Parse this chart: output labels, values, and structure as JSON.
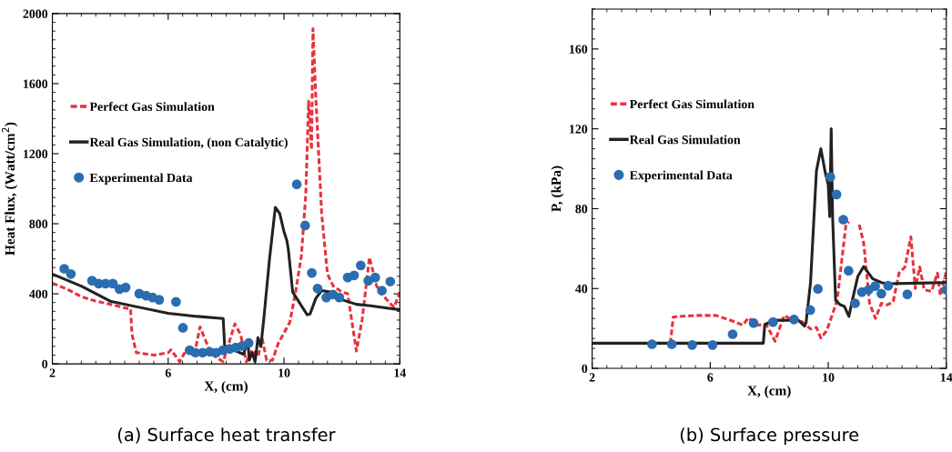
{
  "chart_data": [
    {
      "type": "line",
      "xlabel": "X, (cm)",
      "ylabel": "Heat Flux, (Watt/cm$^{2}$)",
      "xlim": [
        2,
        14
      ],
      "ylim": [
        0,
        2000
      ],
      "xticks": [
        2,
        6,
        10,
        14
      ],
      "yticks": [
        0,
        400,
        800,
        1200,
        1600,
        2000
      ],
      "legend": "top left",
      "grid": false,
      "annotations": [
        "(a) Surface heat transfer"
      ],
      "series": [
        {
          "name": "Perfect Gas Simulation",
          "line_style": "dashed",
          "color": "#e8323c",
          "x": [
            2,
            2.5,
            3,
            3.5,
            4,
            4.5,
            4.7,
            4.75,
            4.9,
            5.5,
            6,
            6.1,
            6.4,
            6.6,
            6.9,
            7.1,
            7.3,
            7.5,
            7.9,
            8.3,
            8.5,
            8.7,
            8.9,
            9.1,
            9.25,
            9.4,
            9.6,
            9.8,
            10.2,
            10.4,
            10.6,
            10.75,
            10.85,
            10.95,
            11.0,
            11.1,
            11.3,
            11.5,
            11.7,
            12,
            12.2,
            12.5,
            12.7,
            12.95,
            13.2,
            13.5,
            13.8,
            14
          ],
          "values": [
            461,
            427,
            384,
            358,
            340,
            320,
            314,
            168,
            64,
            50,
            64,
            80,
            12,
            73,
            50,
            211,
            130,
            55,
            12,
            228,
            168,
            12,
            80,
            40,
            142,
            20,
            20,
            116,
            237,
            410,
            617,
            963,
            1499,
            1222,
            1914,
            1516,
            859,
            513,
            444,
            410,
            401,
            73,
            254,
            608,
            444,
            375,
            323,
            410
          ]
        },
        {
          "name": "Real Gas Simulation, (non Catalytic)",
          "line_style": "solid",
          "color": "#222222",
          "x": [
            2,
            3,
            4,
            5,
            6,
            7,
            7.9,
            7.95,
            8.0,
            8.6,
            8.75,
            8.8,
            8.9,
            9.0,
            9.1,
            9.2,
            9.3,
            9.5,
            9.7,
            9.85,
            10.0,
            10.1,
            10.15,
            10.3,
            10.5,
            10.8,
            10.9,
            11.1,
            11.3,
            11.6,
            12,
            12.5,
            13,
            13.5,
            14
          ],
          "values": [
            513,
            444,
            358,
            323,
            289,
            271,
            259,
            99,
            99,
            55,
            133,
            21,
            64,
            12,
            150,
            99,
            254,
            600,
            894,
            859,
            755,
            703,
            652,
            410,
            358,
            280,
            285,
            375,
            418,
            410,
            366,
            340,
            332,
            320,
            309
          ]
        },
        {
          "name": "Experimental Data",
          "type": "scatter",
          "marker": "circle",
          "color": "#2a6db0",
          "x": [
            2.41,
            2.64,
            3.37,
            3.6,
            3.84,
            4.09,
            4.32,
            4.53,
            5.0,
            5.24,
            5.46,
            5.69,
            6.27,
            6.51,
            6.74,
            6.94,
            7.19,
            7.43,
            7.66,
            7.89,
            8.12,
            8.33,
            8.55,
            8.78,
            10.44,
            10.73,
            10.96,
            11.16,
            11.46,
            11.69,
            11.91,
            12.2,
            12.42,
            12.65,
            12.91,
            13.15,
            13.38,
            13.67
          ],
          "values": [
            543,
            513,
            475,
            458,
            458,
            458,
            427,
            436,
            401,
            389,
            379,
            366,
            354,
            206,
            78,
            64,
            64,
            69,
            64,
            78,
            85,
            93,
            102,
            119,
            1025,
            790,
            519,
            430,
            379,
            396,
            379,
            493,
            505,
            562,
            475,
            493,
            418,
            470
          ]
        }
      ]
    },
    {
      "type": "line",
      "xlabel": "X, (cm)",
      "ylabel": "P, (kPa)",
      "xlim": [
        2,
        14
      ],
      "ylim": [
        0,
        180
      ],
      "xticks": [
        2,
        6,
        10,
        14
      ],
      "yticks": [
        0,
        40,
        80,
        120,
        160
      ],
      "legend": "top left",
      "grid": false,
      "annotations": [
        "(b) Surface pressure"
      ],
      "series": [
        {
          "name": "Perfect Gas Simulation",
          "line_style": "dashed",
          "color": "#e8323c",
          "x": [
            4.65,
            4.75,
            5.5,
            6.2,
            6.8,
            7.1,
            7.3,
            7.6,
            7.9,
            8.2,
            8.5,
            8.8,
            9.1,
            9.4,
            9.6,
            9.75,
            9.95,
            10.3,
            10.6,
            10.7,
            10.9,
            11.0,
            11.05,
            11.2,
            11.4,
            11.6,
            11.8,
            12.0,
            12.2,
            12.4,
            12.6,
            12.8,
            12.95,
            13.1,
            13.25,
            13.5,
            13.7,
            13.8,
            14
          ],
          "values": [
            12.5,
            25.8,
            26.5,
            26.5,
            23.5,
            21.7,
            25.3,
            21.7,
            22,
            13.6,
            26.5,
            24.2,
            23.5,
            19.7,
            20.5,
            15.2,
            18.9,
            34,
            72,
            73.5,
            null,
            null,
            72,
            63,
            32.6,
            25,
            32.6,
            31.8,
            33.3,
            47.7,
            50.8,
            65.9,
            40,
            50.8,
            39.4,
            38.6,
            47.7,
            36.4,
            48.5
          ]
        },
        {
          "name": "Real Gas Simulation",
          "line_style": "solid",
          "color": "#222222",
          "x": [
            2,
            7.8,
            7.85,
            8.2,
            9.0,
            9.2,
            9.25,
            9.4,
            9.6,
            9.75,
            9.9,
            10.0,
            10.05,
            10.1,
            10.15,
            10.25,
            10.4,
            10.55,
            10.7,
            10.8,
            11.0,
            11.2,
            11.35,
            11.5,
            11.8,
            12,
            14
          ],
          "values": [
            12.6,
            12.6,
            22,
            24.2,
            24,
            21.2,
            23,
            43,
            99,
            110,
            98,
            92,
            76,
            120,
            75,
            34,
            32,
            31,
            26,
            33,
            46,
            51,
            48,
            45,
            43,
            42.4,
            43
          ]
        },
        {
          "name": "Experimental Data",
          "type": "scatter",
          "marker": "circle",
          "color": "#2a6db0",
          "x": [
            4.03,
            4.7,
            5.39,
            6.08,
            6.76,
            7.47,
            8.13,
            8.84,
            9.39,
            9.65,
            10.07,
            10.28,
            10.51,
            10.69,
            10.91,
            11.14,
            11.37,
            11.59,
            11.8,
            12.03,
            12.68,
            14.0
          ],
          "values": [
            12.1,
            12.1,
            11.7,
            11.7,
            17.1,
            22.7,
            23.2,
            24.5,
            29.2,
            39.8,
            95.9,
            87.1,
            74.5,
            48.9,
            32.6,
            38.2,
            39.4,
            41.2,
            37.4,
            41.4,
            37.1,
            39.4
          ]
        }
      ]
    }
  ]
}
